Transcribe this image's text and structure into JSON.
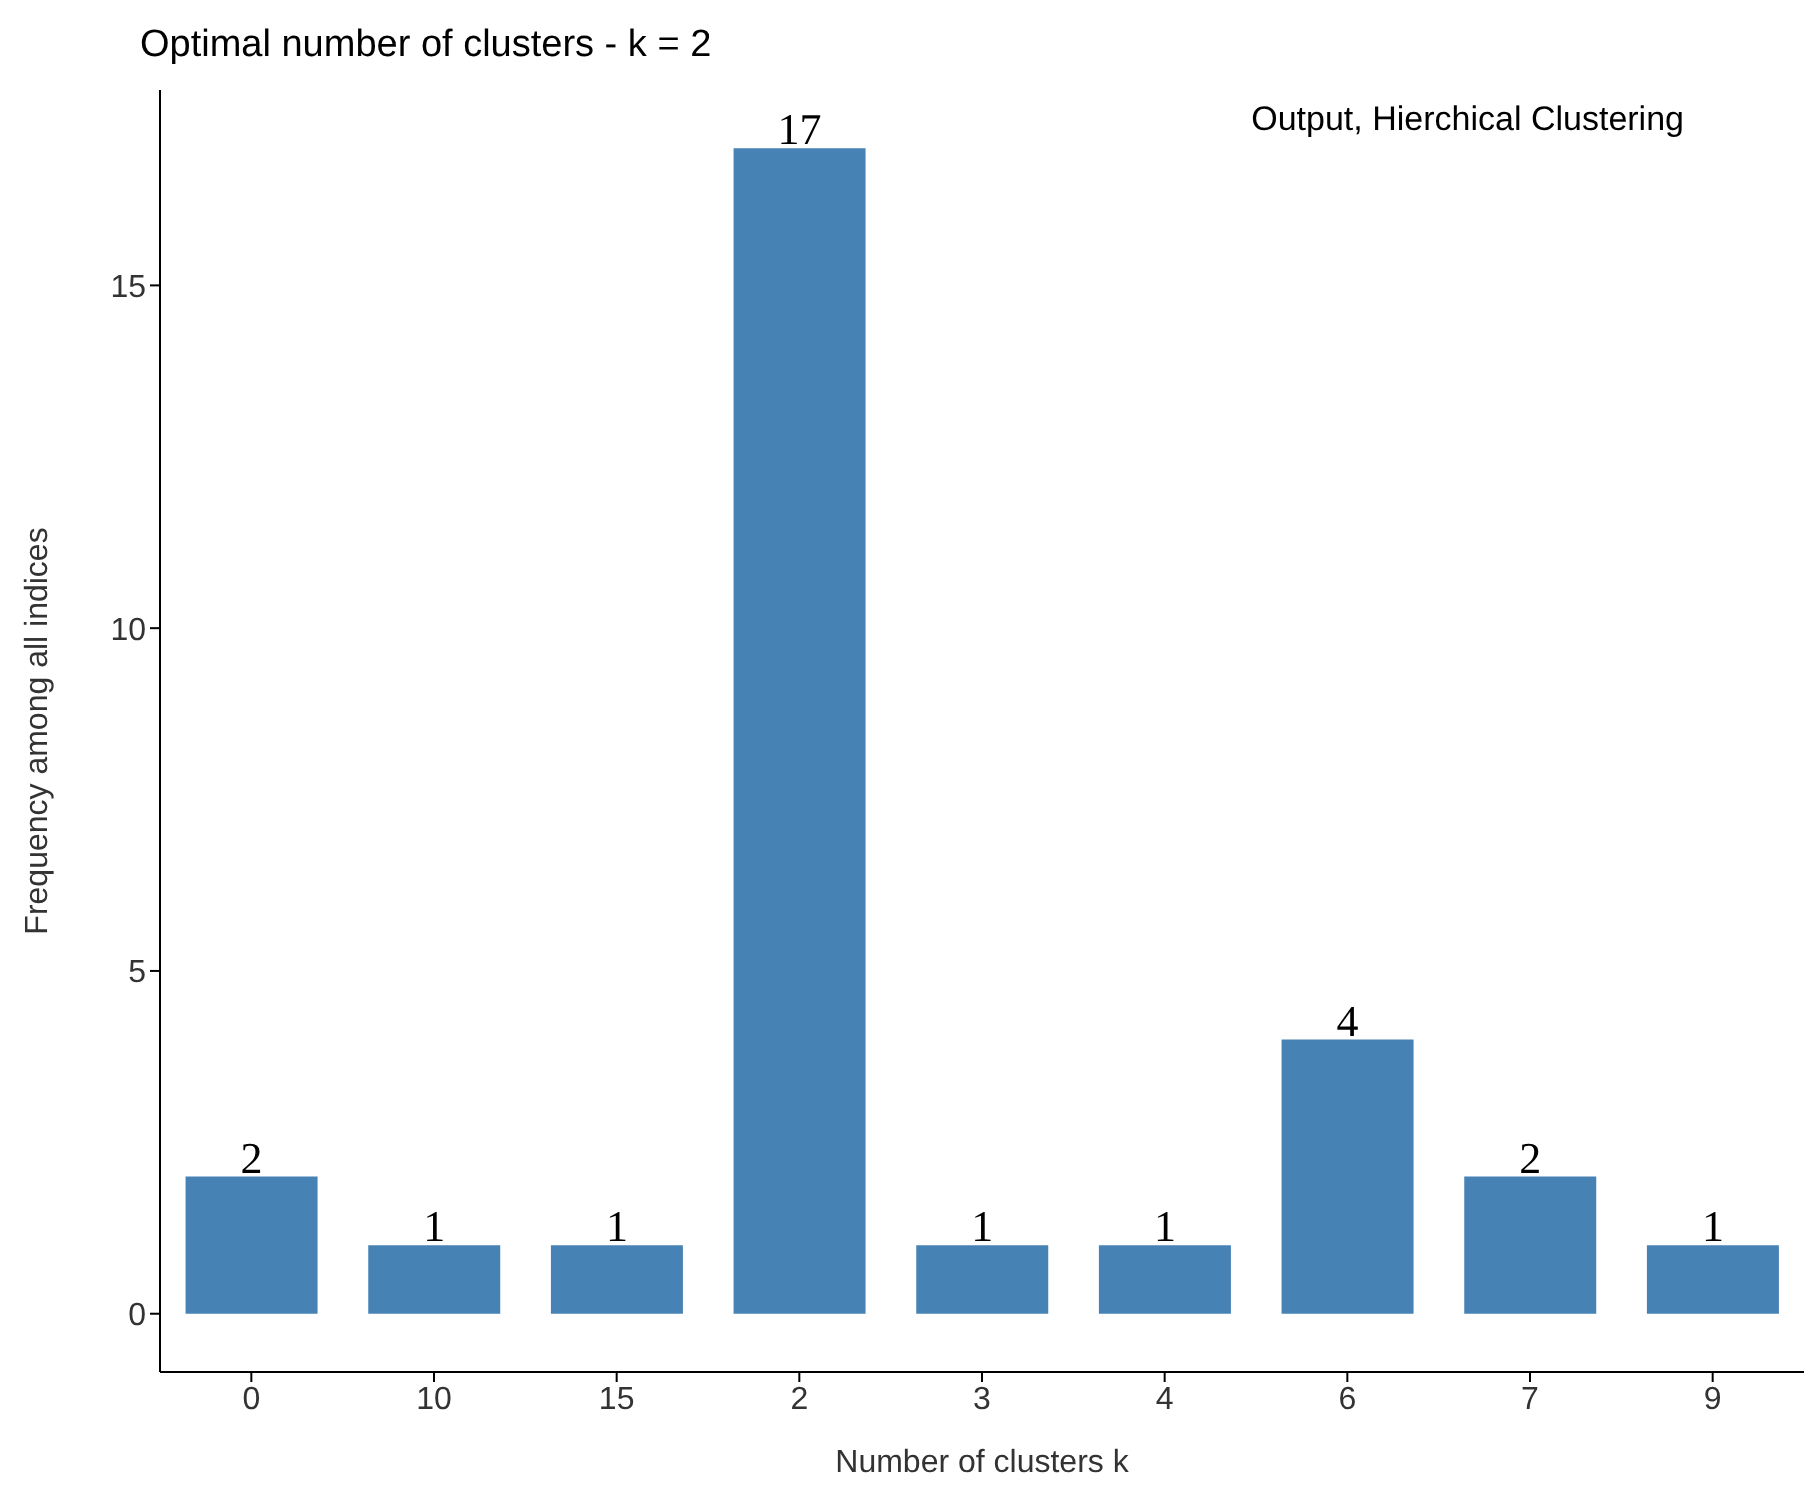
{
  "chart_data": {
    "type": "bar",
    "title": "Optimal number of clusters - k = 2",
    "xlabel": "Number of clusters k",
    "ylabel": "Frequency among all indices",
    "annotations": [
      "Output, Hierchical Clustering"
    ],
    "categories": [
      "0",
      "10",
      "15",
      "2",
      "3",
      "4",
      "6",
      "7",
      "9"
    ],
    "values": [
      2,
      1,
      1,
      17,
      1,
      1,
      4,
      2,
      1
    ],
    "color": "#4682b4",
    "ylim": [
      -0.85,
      17.85
    ],
    "yticks": [
      0,
      5,
      10,
      15
    ],
    "grid": false,
    "data_labels": true
  }
}
